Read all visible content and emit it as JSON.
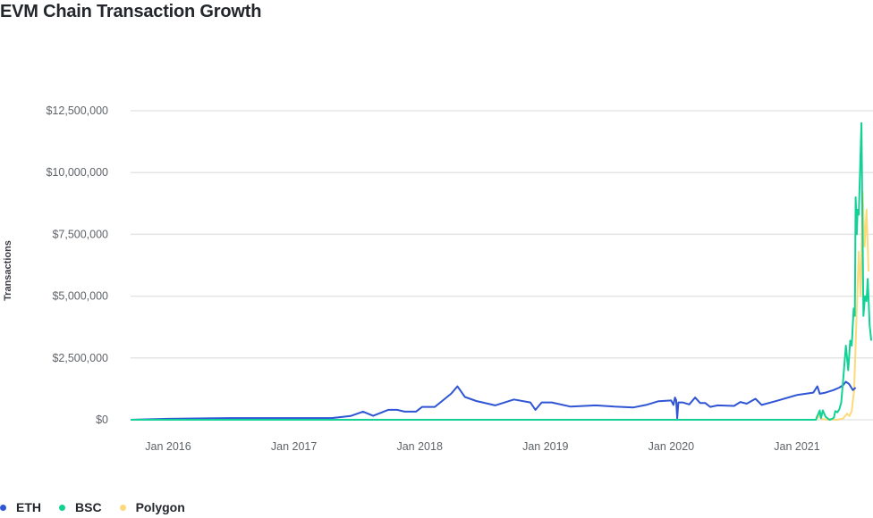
{
  "title": "EVM Chain Transaction Growth",
  "colors": {
    "ETH": "#2f55d4",
    "BSC": "#12d195",
    "Polygon": "#fcd97a",
    "grid": "#e5e5e5",
    "tick_text": "#5f6368"
  },
  "legend": [
    {
      "label": "ETH",
      "color": "#2f55d4"
    },
    {
      "label": "BSC",
      "color": "#12d195"
    },
    {
      "label": "Polygon",
      "color": "#fcd97a"
    }
  ],
  "chart_data": {
    "type": "line",
    "title": "EVM Chain Transaction Growth",
    "xlabel": "",
    "ylabel": "Transactions",
    "ylim": [
      0,
      12500000
    ],
    "y_ticks": [
      "$0",
      "$2,500,000",
      "$5,000,000",
      "$7,500,000",
      "$10,000,000",
      "$12,500,000"
    ],
    "y_tick_values": [
      0,
      2500000,
      5000000,
      7500000,
      10000000,
      12500000
    ],
    "x_ticks": [
      "Jan 2016",
      "Jan 2017",
      "Jan 2018",
      "Jan 2019",
      "Jan 2020",
      "Jan 2021"
    ],
    "x_tick_years": [
      2016,
      2017,
      2018,
      2019,
      2020,
      2021
    ],
    "xlim": [
      2015.7,
      2021.6
    ],
    "grid": true,
    "legend_position": "bottom-left",
    "series": [
      {
        "name": "ETH",
        "color": "#2f55d4",
        "points": [
          [
            2015.7,
            0
          ],
          [
            2016.0,
            40000
          ],
          [
            2016.5,
            70000
          ],
          [
            2017.0,
            70000
          ],
          [
            2017.3,
            70000
          ],
          [
            2017.45,
            150000
          ],
          [
            2017.55,
            330000
          ],
          [
            2017.63,
            160000
          ],
          [
            2017.75,
            400000
          ],
          [
            2017.82,
            400000
          ],
          [
            2017.88,
            330000
          ],
          [
            2017.97,
            330000
          ],
          [
            2018.02,
            520000
          ],
          [
            2018.12,
            520000
          ],
          [
            2018.25,
            1050000
          ],
          [
            2018.3,
            1350000
          ],
          [
            2018.36,
            920000
          ],
          [
            2018.45,
            760000
          ],
          [
            2018.6,
            580000
          ],
          [
            2018.75,
            820000
          ],
          [
            2018.88,
            700000
          ],
          [
            2018.92,
            400000
          ],
          [
            2018.97,
            700000
          ],
          [
            2019.05,
            700000
          ],
          [
            2019.2,
            530000
          ],
          [
            2019.4,
            580000
          ],
          [
            2019.55,
            530000
          ],
          [
            2019.7,
            500000
          ],
          [
            2019.8,
            600000
          ],
          [
            2019.9,
            750000
          ],
          [
            2020.0,
            780000
          ],
          [
            2020.06,
            600000
          ],
          [
            2020.1,
            900000
          ],
          [
            2020.13,
            800000
          ],
          [
            2020.16,
            60000
          ],
          [
            2020.19,
            700000
          ],
          [
            2020.3,
            700000
          ],
          [
            2020.48,
            620000
          ],
          [
            2020.54,
            900000
          ],
          [
            2020.58,
            680000
          ],
          [
            2020.62,
            680000
          ],
          [
            2020.66,
            520000
          ],
          [
            2020.72,
            580000
          ],
          [
            2020.85,
            560000
          ],
          [
            2020.9,
            720000
          ],
          [
            2020.95,
            650000
          ],
          [
            2021.02,
            850000
          ],
          [
            2021.07,
            600000
          ],
          [
            2021.18,
            750000
          ],
          [
            2021.35,
            1000000
          ],
          [
            2021.48,
            1100000
          ],
          [
            2021.54,
            1350000
          ],
          [
            2021.6,
            1050000
          ],
          [
            2021.75,
            1100000
          ],
          [
            2021.95,
            1200000
          ],
          [
            2022.1,
            1300000
          ],
          [
            2022.2,
            1400000
          ],
          [
            2022.27,
            1540000
          ],
          [
            2022.35,
            1450000
          ],
          [
            2022.45,
            1200000
          ],
          [
            2022.52,
            1300000
          ]
        ]
      },
      {
        "name": "BSC",
        "color": "#12d195",
        "points": [
          [
            2015.7,
            0
          ],
          [
            2020.5,
            0
          ],
          [
            2021.5,
            0
          ],
          [
            2021.54,
            150000
          ],
          [
            2021.6,
            380000
          ],
          [
            2021.63,
            60000
          ],
          [
            2021.68,
            380000
          ],
          [
            2021.75,
            120000
          ],
          [
            2021.85,
            0
          ],
          [
            2021.9,
            20000
          ],
          [
            2021.96,
            80000
          ],
          [
            2022.0,
            350000
          ],
          [
            2022.05,
            300000
          ],
          [
            2022.1,
            420000
          ],
          [
            2022.15,
            700000
          ],
          [
            2022.2,
            1600000
          ],
          [
            2022.27,
            3000000
          ],
          [
            2022.33,
            2000000
          ],
          [
            2022.38,
            3200000
          ],
          [
            2022.42,
            3000000
          ],
          [
            2022.47,
            4500000
          ],
          [
            2022.5,
            4200000
          ],
          [
            2022.52,
            9000000
          ],
          [
            2022.55,
            7500000
          ],
          [
            2022.57,
            8500000
          ],
          [
            2022.6,
            8300000
          ],
          [
            2022.67,
            12000000
          ],
          [
            2022.72,
            4200000
          ],
          [
            2022.76,
            5000000
          ],
          [
            2022.8,
            4800000
          ],
          [
            2022.83,
            5700000
          ],
          [
            2022.88,
            3800000
          ],
          [
            2022.92,
            3200000
          ]
        ]
      },
      {
        "name": "Polygon",
        "color": "#fcd97a",
        "points": [
          [
            2015.7,
            0
          ],
          [
            2021.5,
            0
          ],
          [
            2021.56,
            100000
          ],
          [
            2021.6,
            250000
          ],
          [
            2021.64,
            40000
          ],
          [
            2021.8,
            0
          ],
          [
            2021.9,
            40000
          ],
          [
            2021.96,
            0
          ],
          [
            2022.05,
            0
          ],
          [
            2022.2,
            50000
          ],
          [
            2022.3,
            250000
          ],
          [
            2022.36,
            150000
          ],
          [
            2022.42,
            350000
          ],
          [
            2022.48,
            1200000
          ],
          [
            2022.53,
            3500000
          ],
          [
            2022.6,
            6800000
          ],
          [
            2022.65,
            5000000
          ],
          [
            2022.7,
            9200000
          ],
          [
            2022.75,
            7000000
          ],
          [
            2022.8,
            8500000
          ],
          [
            2022.85,
            6000000
          ]
        ]
      }
    ]
  }
}
